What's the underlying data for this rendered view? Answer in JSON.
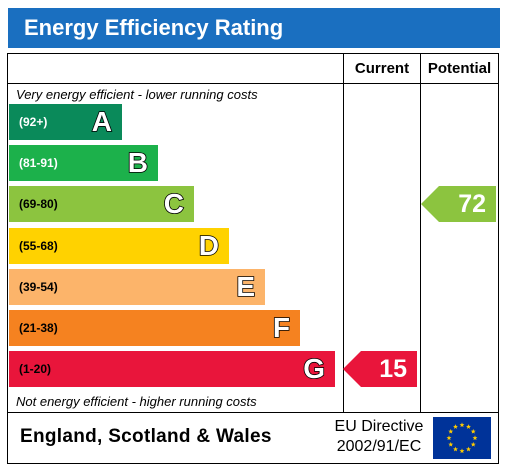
{
  "title": "Energy Efficiency Rating",
  "columns": {
    "current": "Current",
    "potential": "Potential"
  },
  "notes": {
    "top": "Very energy efficient - lower running costs",
    "bottom": "Not energy efficient - higher running costs"
  },
  "bands": [
    {
      "letter": "A",
      "range": "(92+)",
      "color": "#0a8a5a",
      "range_color": "#ffffff"
    },
    {
      "letter": "B",
      "range": "(81-91)",
      "color": "#1cb14b",
      "range_color": "#ffffff"
    },
    {
      "letter": "C",
      "range": "(69-80)",
      "color": "#8cc43f",
      "range_color": "#000000"
    },
    {
      "letter": "D",
      "range": "(55-68)",
      "color": "#ffd200",
      "range_color": "#000000"
    },
    {
      "letter": "E",
      "range": "(39-54)",
      "color": "#fcb46a",
      "range_color": "#000000"
    },
    {
      "letter": "F",
      "range": "(21-38)",
      "color": "#f58220",
      "range_color": "#000000"
    },
    {
      "letter": "G",
      "range": "(1-20)",
      "color": "#e9153b",
      "range_color": "#000000"
    }
  ],
  "current": {
    "value": "15",
    "band": "G",
    "color": "#e9153b"
  },
  "potential": {
    "value": "72",
    "band": "C",
    "color": "#8cc43f"
  },
  "footer": {
    "country": "England, Scotland & Wales",
    "directive_line1": "EU Directive",
    "directive_line2": "2002/91/EC",
    "flag_color": "#003399",
    "star_color": "#ffcc00"
  }
}
